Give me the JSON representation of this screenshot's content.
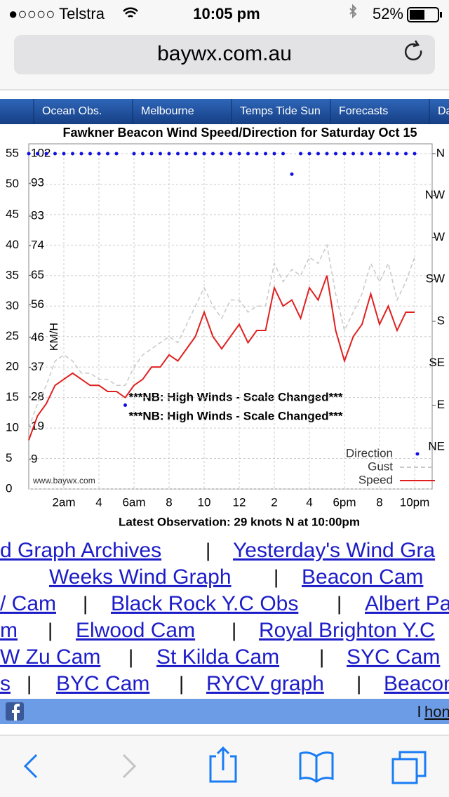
{
  "status_bar": {
    "carrier": "●○○○○ Telstra",
    "time": "10:05 pm",
    "battery": "52%"
  },
  "address_bar": {
    "url": "baywx.com.au"
  },
  "nav": [
    "Ocean Obs.",
    "Melbourne",
    "Temps Tide Sun",
    "Forecasts",
    "Da"
  ],
  "chart_data": {
    "type": "line",
    "title": "Fawkner Beacon Wind Speed/Direction for Saturday Oct 15",
    "y2_label": "KM/H",
    "footer": "Latest Observation: 29 knots N at 10:00pm",
    "watermark": "www.baywx.com",
    "annotations": [
      "***NB: High Winds - Scale Changed***",
      "***NB: High Winds - Scale Changed***"
    ],
    "x": [
      0,
      0.5,
      1,
      1.5,
      2,
      2.5,
      3,
      3.5,
      4,
      4.5,
      5,
      5.5,
      6,
      6.5,
      7,
      7.5,
      8,
      8.5,
      9,
      9.5,
      10,
      10.5,
      11,
      11.5,
      12,
      12.5,
      13,
      13.5,
      14,
      14.5,
      15,
      15.5,
      16,
      16.5,
      17,
      17.5,
      18,
      18.5,
      19,
      19.5,
      20,
      20.5,
      21,
      21.5,
      22
    ],
    "xlim": [
      0,
      23
    ],
    "xticks": [
      {
        "value": 2,
        "label": "2am"
      },
      4,
      {
        "value": 6,
        "label": "6am"
      },
      8,
      10,
      12,
      {
        "value": 14,
        "label": "2"
      },
      {
        "value": 16,
        "label": "4"
      },
      {
        "value": 18,
        "label": "6pm"
      },
      {
        "value": 20,
        "label": "8"
      },
      {
        "value": 22,
        "label": "10pm"
      }
    ],
    "ylim": [
      0,
      55
    ],
    "yticks": [
      0,
      5,
      10,
      15,
      20,
      25,
      30,
      35,
      40,
      45,
      50,
      55
    ],
    "y2lim": [
      0,
      102
    ],
    "y2ticks": [
      9,
      19,
      28,
      37,
      46,
      56,
      65,
      74,
      83,
      93,
      102
    ],
    "y3lim": [
      0,
      360
    ],
    "y3ticks": [
      {
        "value": 45,
        "label": "NE"
      },
      {
        "value": 90,
        "label": "E"
      },
      {
        "value": 135,
        "label": "SE"
      },
      {
        "value": 180,
        "label": "S"
      },
      {
        "value": 225,
        "label": "SW"
      },
      {
        "value": 270,
        "label": "W"
      },
      {
        "value": 315,
        "label": "NW"
      },
      {
        "value": 360,
        "label": "N"
      }
    ],
    "grid": true,
    "legend": "bottom-right",
    "series": [
      {
        "name": "Direction",
        "color": "#1010e0",
        "style": "dots",
        "axis": "y3",
        "values": [
          360,
          360,
          360,
          360,
          360,
          360,
          360,
          360,
          360,
          360,
          360,
          90,
          360,
          360,
          360,
          360,
          360,
          360,
          360,
          360,
          360,
          360,
          360,
          360,
          360,
          360,
          360,
          360,
          360,
          360,
          338,
          360,
          360,
          360,
          360,
          360,
          360,
          360,
          360,
          360,
          360,
          360,
          360,
          360,
          360
        ]
      },
      {
        "name": "Gust",
        "color": "#c8c8c8",
        "style": "dashed",
        "values": [
          10,
          14,
          17,
          21,
          22,
          21,
          19,
          19,
          18,
          18,
          17,
          17,
          20,
          22,
          23,
          24,
          25,
          24,
          27,
          30,
          33,
          30,
          28,
          31,
          31,
          29,
          30,
          30,
          37,
          34,
          36,
          35,
          38,
          37,
          40,
          32,
          26,
          29,
          32,
          37,
          34,
          37,
          31,
          34,
          38
        ]
      },
      {
        "name": "Speed",
        "color": "#e02020",
        "style": "solid",
        "values": [
          8,
          12,
          14,
          17,
          18,
          19,
          18,
          17,
          17,
          16,
          16,
          15,
          17,
          18,
          20,
          20,
          22,
          21,
          23,
          25,
          29,
          25,
          23,
          25,
          27,
          24,
          26,
          26,
          33,
          30,
          31,
          28,
          33,
          31,
          35,
          26,
          21,
          25,
          27,
          32,
          27,
          30,
          26,
          29,
          29
        ]
      }
    ]
  },
  "links": {
    "separator": "|",
    "rows": [
      [
        "d Graph Archives",
        "Yesterday's Wind Gra"
      ],
      [
        "Weeks Wind Graph",
        "Beacon Cam"
      ],
      [
        "/ Cam",
        "Black Rock Y.C Obs",
        "Albert Pa"
      ],
      [
        "m",
        "Elwood Cam",
        "Royal Brighton Y.C"
      ],
      [
        "W Zu Cam",
        "St Kilda Cam",
        "SYC Cam"
      ],
      [
        "s",
        "BYC Cam",
        "RYCV graph",
        "Beacon"
      ]
    ]
  },
  "footer_bar": {
    "link": "hon",
    "separator": "l"
  }
}
